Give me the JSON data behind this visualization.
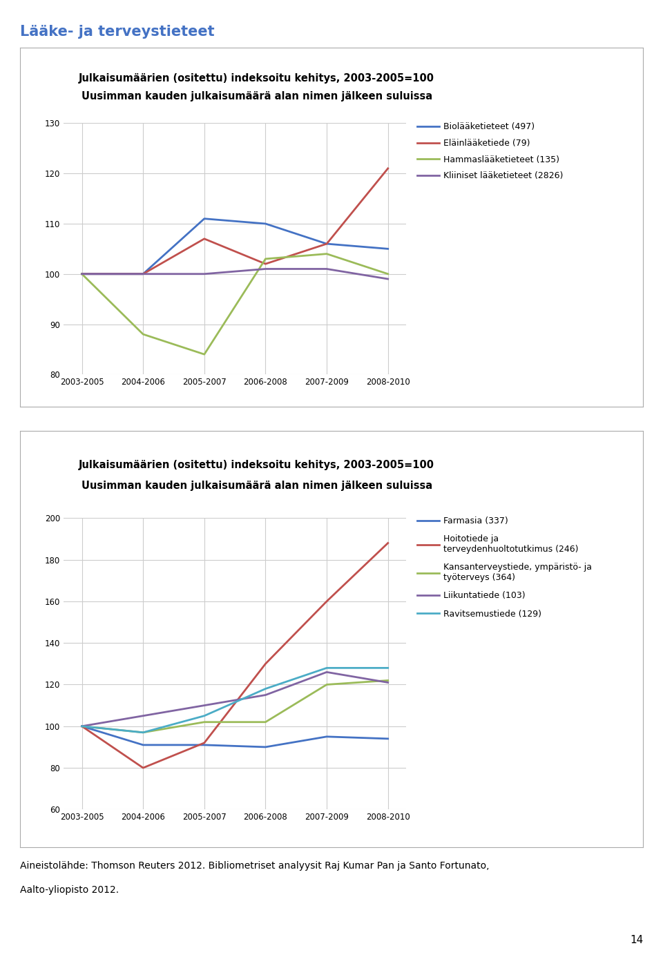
{
  "page_title": "Lääke- ja terveystieteet",
  "page_title_color": "#4472c4",
  "chart1": {
    "title_line1": "Julkaisumäärien (ositettu) indeksoitu kehitys, 2003-2005=100",
    "title_line2": "Uusimman kauden julkaisumäärä alan nimen jälkeen suluissa",
    "x_labels": [
      "2003-2005",
      "2004-2006",
      "2005-2007",
      "2006-2008",
      "2007-2009",
      "2008-2010"
    ],
    "ylim": [
      80,
      130
    ],
    "yticks": [
      80,
      90,
      100,
      110,
      120,
      130
    ],
    "series": [
      {
        "label": "Biolääketieteet (497)",
        "color": "#4472c4",
        "values": [
          100,
          100,
          111,
          110,
          106,
          105
        ]
      },
      {
        "label": "Eläinlääketiede (79)",
        "color": "#c0504d",
        "values": [
          100,
          100,
          107,
          102,
          106,
          121
        ]
      },
      {
        "label": "Hammaslääketieteet (135)",
        "color": "#9bbb59",
        "values": [
          100,
          88,
          84,
          103,
          104,
          100
        ]
      },
      {
        "label": "Kliiniset lääketieteet (2826)",
        "color": "#8064a2",
        "values": [
          100,
          100,
          100,
          101,
          101,
          99
        ]
      }
    ]
  },
  "chart2": {
    "title_line1": "Julkaisumäärien (ositettu) indeksoitu kehitys, 2003-2005=100",
    "title_line2": "Uusimman kauden julkaisumäärä alan nimen jälkeen suluissa",
    "x_labels": [
      "2003-2005",
      "2004-2006",
      "2005-2007",
      "2006-2008",
      "2007-2009",
      "2008-2010"
    ],
    "ylim": [
      60,
      200
    ],
    "yticks": [
      60,
      80,
      100,
      120,
      140,
      160,
      180,
      200
    ],
    "series": [
      {
        "label": "Farmasia (337)",
        "color": "#4472c4",
        "values": [
          100,
          91,
          91,
          90,
          95,
          94
        ]
      },
      {
        "label": "Hoitotiede ja\nterveydenhuoltotutkimus (246)",
        "color": "#c0504d",
        "values": [
          100,
          80,
          92,
          130,
          160,
          188
        ]
      },
      {
        "label": "Kansanterveystiede, ympäristö- ja\ntyöterveys (364)",
        "color": "#9bbb59",
        "values": [
          100,
          97,
          102,
          102,
          120,
          122
        ]
      },
      {
        "label": "Liikuntatiede (103)",
        "color": "#8064a2",
        "values": [
          100,
          105,
          110,
          115,
          126,
          121
        ]
      },
      {
        "label": "Ravitsemustiede (129)",
        "color": "#4bacc6",
        "values": [
          100,
          97,
          105,
          118,
          128,
          128
        ]
      }
    ]
  },
  "footnote_line1": "Aineistolähde: Thomson Reuters 2012. Bibliometriset analyysit Raj Kumar Pan ja Santo Fortunato,",
  "footnote_line2": "Aalto-yliopisto 2012.",
  "page_number": "14"
}
